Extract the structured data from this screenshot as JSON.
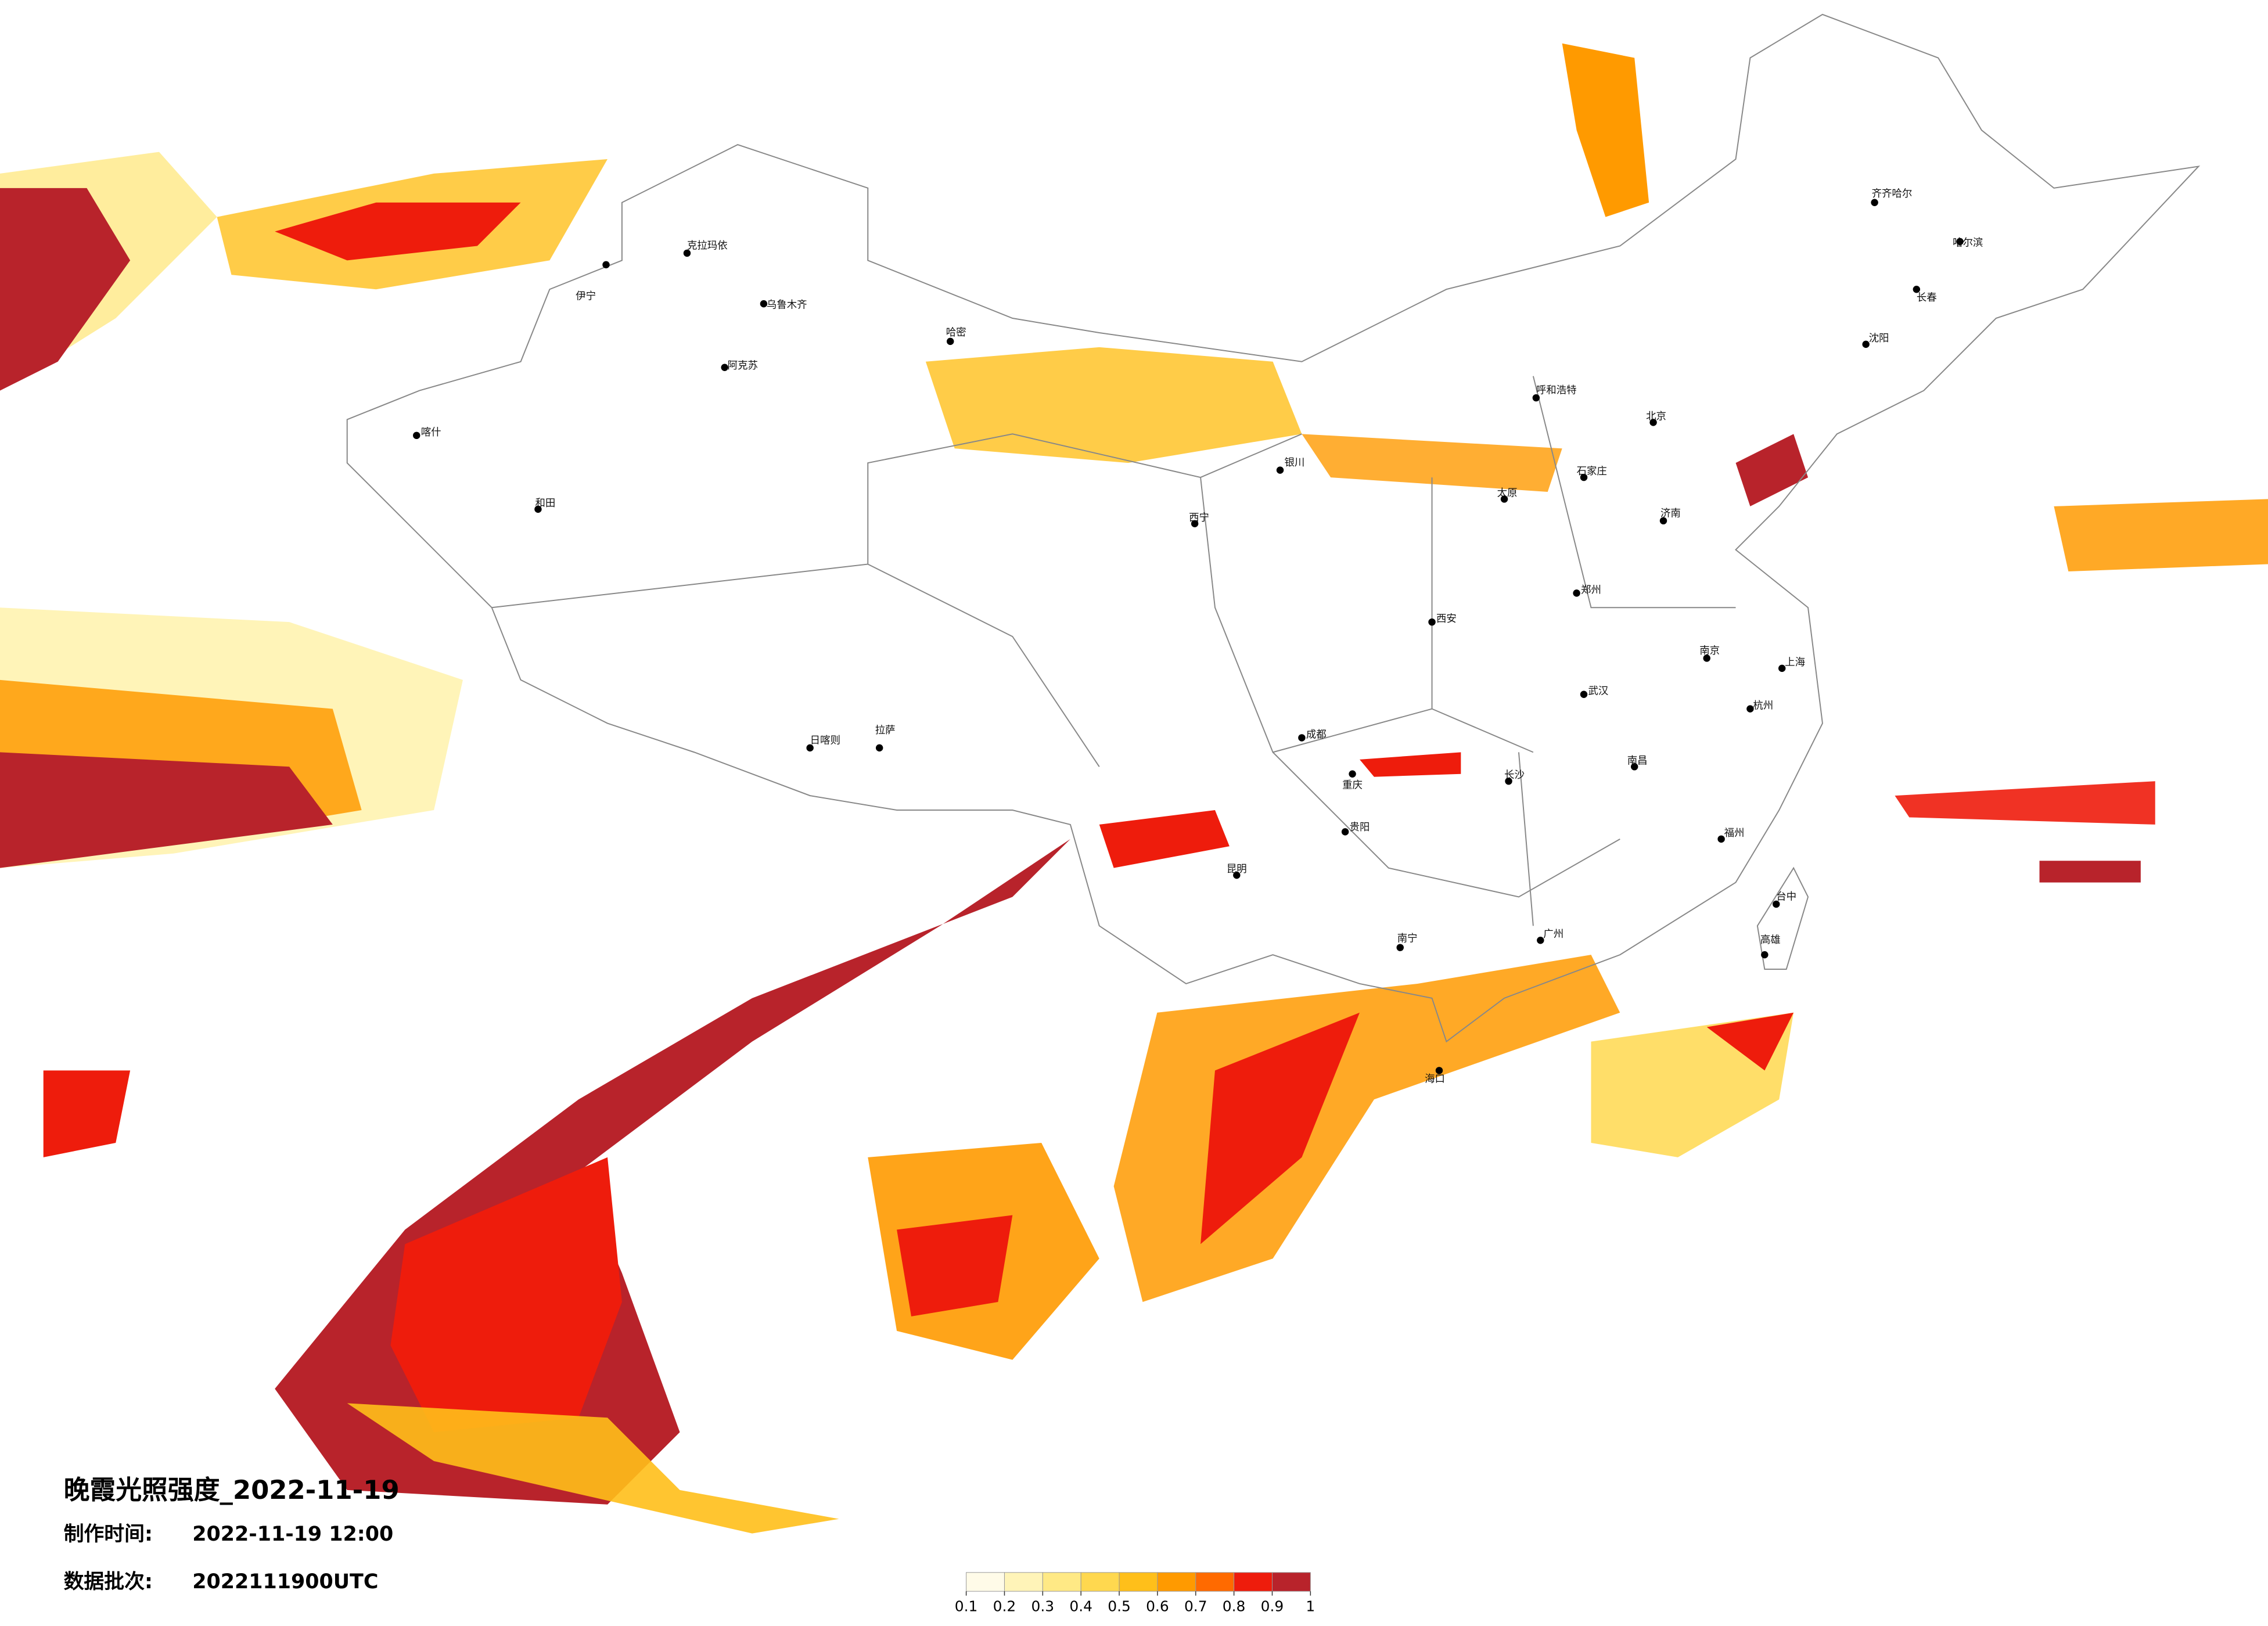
{
  "map": {
    "title": "晚霞光照强度_2022-11-19",
    "made_label": "制作时间:",
    "made_time": "2022-11-19 12:00",
    "batch_label": "数据批次:",
    "batch": "2022111900UTC",
    "cities": [
      "伊宁",
      "克拉玛依",
      "乌鲁木齐",
      "哈密",
      "阿克苏",
      "喀什",
      "和田",
      "拉萨",
      "日喀则",
      "西宁",
      "银川",
      "呼和浩特",
      "北京",
      "石家庄",
      "太原",
      "郑州",
      "西安",
      "成都",
      "重庆",
      "贵阳",
      "昆明",
      "南宁",
      "长沙",
      "武汉",
      "南昌",
      "杭州",
      "上海",
      "南京",
      "济南",
      "沈阳",
      "长春",
      "哈尔滨",
      "齐齐哈尔",
      "福州",
      "广州",
      "海口",
      "台中",
      "高雄"
    ],
    "colorbar": {
      "ticks": [
        0.1,
        0.2,
        0.3,
        0.4,
        0.5,
        0.6,
        0.7,
        0.8,
        0.9,
        1
      ],
      "colors": [
        "#fffbe8",
        "#fff4b8",
        "#ffe985",
        "#ffd84f",
        "#ffbf1a",
        "#ff9a00",
        "#ff6a00",
        "#ee1c0c",
        "#b8232b"
      ]
    }
  }
}
